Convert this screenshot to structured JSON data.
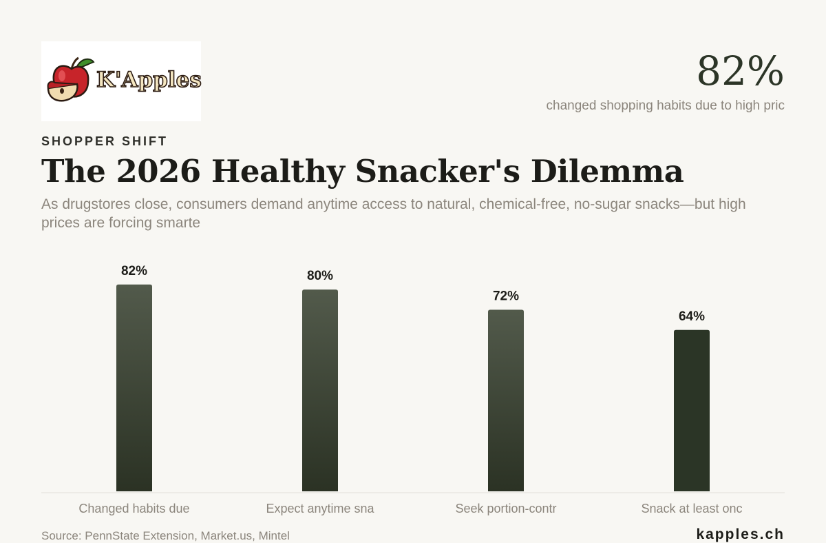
{
  "brand": {
    "logo_text": "K'Apples",
    "footer_text": "kapples.ch"
  },
  "headline_stat": {
    "value": "82%",
    "caption": "changed shopping habits due to high pric"
  },
  "eyebrow": "SHOPPER SHIFT",
  "title": "The 2026 Healthy Snacker's Dilemma",
  "subtitle": "As drugstores close, consumers demand anytime access to natural, chemical-free, no-sugar snacks—but high prices are forcing smarte",
  "source": "Source: PennState Extension, Market.us, Mintel",
  "colors": {
    "background": "#f8f7f3",
    "bar_top": "#525a4b",
    "bar_bottom": "#2b3224",
    "bar_highlight": "#2b3526",
    "text_dark": "#1c1c18",
    "text_muted": "#8b857c"
  },
  "chart_data": {
    "type": "bar",
    "categories": [
      "Changed habits due",
      "Expect anytime sna",
      "Seek portion-contr",
      "Snack at least onc"
    ],
    "values": [
      82,
      80,
      72,
      64
    ],
    "value_labels": [
      "82%",
      "80%",
      "72%",
      "64%"
    ],
    "unit": "%",
    "ylim": [
      0,
      100
    ],
    "grid": false,
    "highlight_index": 3
  }
}
